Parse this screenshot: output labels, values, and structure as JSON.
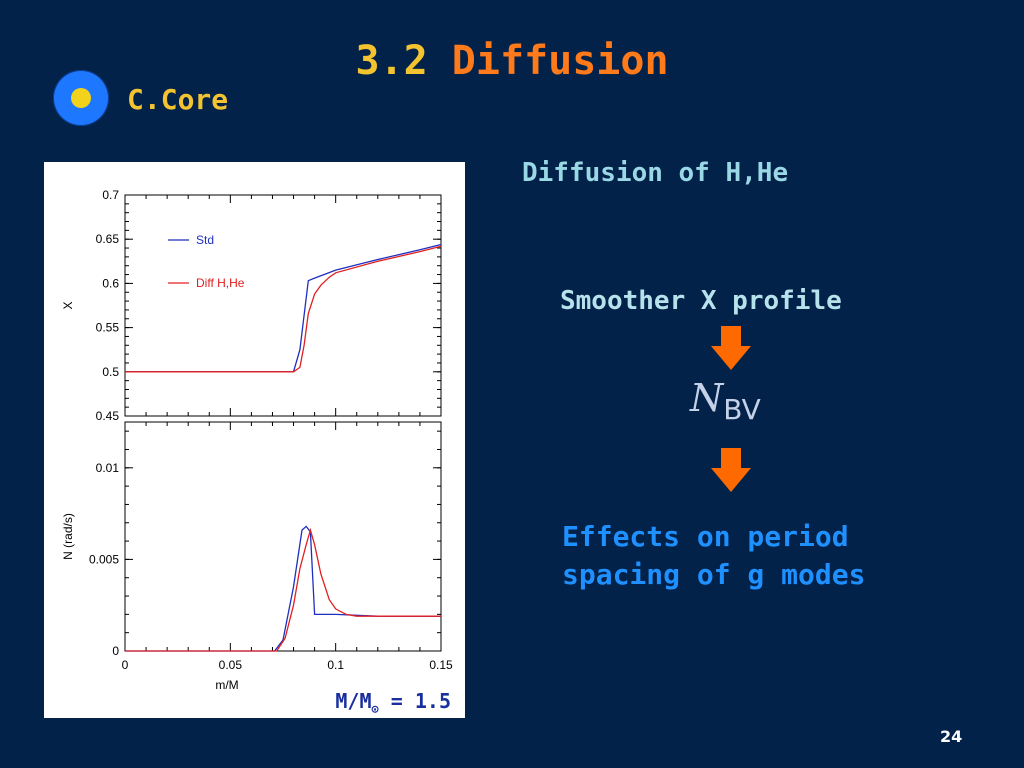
{
  "slide": {
    "title_number": "3.2",
    "title_word": "Diffusion",
    "section": "C.Core",
    "subheading": "Diffusion of H,He",
    "smoother": "Smoother X profile",
    "nbv_symbol": "N",
    "nbv_subscript": "BV",
    "effects_line1": "Effects on period",
    "effects_line2": "spacing of g modes",
    "caption_prefix": "M/M",
    "caption_sub": "⊙",
    "caption_suffix": " = 1.5",
    "page_number": "24"
  },
  "colors": {
    "background": "#03224a",
    "title_number": "#f4c430",
    "title_word": "#ff7a1a",
    "arrow": "#ff6a00",
    "std_line": "#1f2fbf",
    "diff_line": "#e02020"
  },
  "icons": {
    "bullet": "bullet-circle-icon",
    "arrow": "arrow-down-icon"
  },
  "chart_data": [
    {
      "type": "line",
      "ylabel": "X",
      "xlim": [
        0,
        0.15
      ],
      "ylim": [
        0.45,
        0.7
      ],
      "yticks": [
        0.45,
        0.5,
        0.55,
        0.6,
        0.65,
        0.7
      ],
      "ytick_labels": [
        "0.45",
        "0.5",
        "0.55",
        "0.6",
        "0.65",
        "0.7"
      ],
      "legend_position": "top-left",
      "series": [
        {
          "name": "Std",
          "color": "#1f2fbf",
          "x": [
            0,
            0.077,
            0.08,
            0.083,
            0.087,
            0.09,
            0.1,
            0.12,
            0.14,
            0.15
          ],
          "y": [
            0.5,
            0.5,
            0.5,
            0.525,
            0.603,
            0.606,
            0.615,
            0.627,
            0.638,
            0.644
          ]
        },
        {
          "name": "Diff H,He",
          "color": "#e02020",
          "x": [
            0,
            0.077,
            0.08,
            0.083,
            0.085,
            0.087,
            0.09,
            0.093,
            0.097,
            0.1,
            0.12,
            0.14,
            0.15
          ],
          "y": [
            0.5,
            0.5,
            0.5,
            0.505,
            0.53,
            0.566,
            0.588,
            0.598,
            0.607,
            0.612,
            0.625,
            0.636,
            0.642
          ]
        }
      ]
    },
    {
      "type": "line",
      "xlabel": "m/M",
      "ylabel": "N (rad/s)",
      "xlim": [
        0,
        0.15
      ],
      "ylim": [
        0,
        0.0125
      ],
      "xticks": [
        0,
        0.05,
        0.1,
        0.15
      ],
      "xtick_labels": [
        "0",
        "0.05",
        "0.1",
        "0.15"
      ],
      "yticks": [
        0,
        0.005,
        0.01
      ],
      "ytick_labels": [
        "0",
        "0.005",
        "0.01"
      ],
      "series": [
        {
          "name": "Std",
          "color": "#1f2fbf",
          "x": [
            0,
            0.071,
            0.075,
            0.08,
            0.084,
            0.086,
            0.088,
            0.09,
            0.1,
            0.12,
            0.15
          ],
          "y": [
            0,
            0,
            0.0006,
            0.0035,
            0.0066,
            0.0068,
            0.0065,
            0.002,
            0.002,
            0.0019,
            0.0019
          ]
        },
        {
          "name": "Diff H,He",
          "color": "#e02020",
          "x": [
            0,
            0.072,
            0.076,
            0.08,
            0.083,
            0.086,
            0.088,
            0.09,
            0.093,
            0.097,
            0.1,
            0.105,
            0.11,
            0.12,
            0.15
          ],
          "y": [
            0,
            0,
            0.0007,
            0.0025,
            0.0045,
            0.0058,
            0.0066,
            0.0058,
            0.0042,
            0.0028,
            0.0023,
            0.002,
            0.0019,
            0.0019,
            0.0019
          ]
        }
      ]
    }
  ]
}
